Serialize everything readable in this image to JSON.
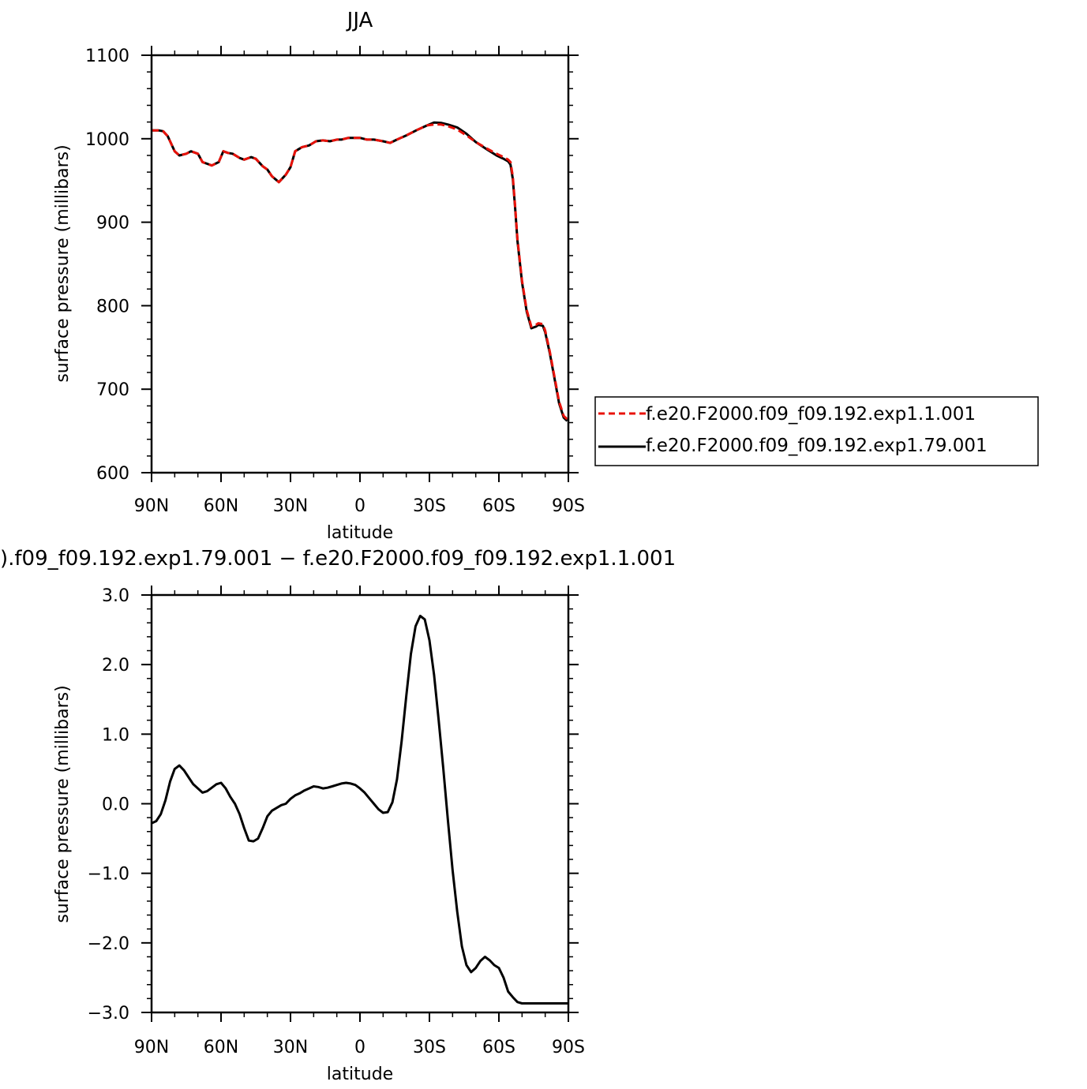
{
  "chart_data": [
    {
      "type": "line",
      "title": "JJA",
      "xlabel": "latitude",
      "ylabel": "surface pressure (millibars)",
      "xlim": [
        90,
        -90
      ],
      "ylim": [
        600,
        1100
      ],
      "x_ticks": [
        90,
        60,
        30,
        0,
        -30,
        -60,
        -90
      ],
      "x_tick_labels": [
        "90N",
        "60N",
        "30N",
        "0",
        "30S",
        "60S",
        "90S"
      ],
      "y_ticks": [
        600,
        700,
        800,
        900,
        1000,
        1100
      ],
      "y_tick_labels": [
        "600",
        "700",
        "800",
        "900",
        "1000",
        "1100"
      ],
      "legend_position": "right",
      "series": [
        {
          "name": "f.e20.F2000.f09_f09.192.exp1.1.001",
          "color": "#e8120a",
          "dash": "dashed",
          "x": [
            90,
            87,
            85,
            83,
            80,
            78,
            75,
            73,
            70,
            68,
            66,
            64,
            61,
            59,
            57,
            55,
            52,
            50,
            47,
            45,
            42,
            40,
            38,
            35,
            32,
            30,
            28,
            25,
            22,
            19,
            16,
            13,
            10,
            8,
            5,
            2,
            0,
            -3,
            -6,
            -10,
            -13,
            -16,
            -20,
            -25,
            -29,
            -32,
            -35,
            -38,
            -42,
            -46,
            -50,
            -55,
            -59,
            -62,
            -64,
            -65,
            -66,
            -67,
            -68,
            -70,
            -72,
            -74,
            -76,
            -77,
            -79,
            -80,
            -82,
            -84,
            -86,
            -88,
            -89.5
          ],
          "y": [
            1010,
            1010,
            1009,
            1003,
            985,
            980,
            982,
            985,
            982,
            972,
            970,
            968,
            972,
            985,
            983,
            982,
            977,
            975,
            978,
            976,
            967,
            963,
            955,
            948,
            957,
            966,
            985,
            990,
            992,
            997,
            998,
            997,
            999,
            999,
            1001,
            1001,
            1001,
            999,
            999,
            997,
            995,
            999,
            1004,
            1011,
            1016,
            1017,
            1017,
            1015,
            1011,
            1004,
            996,
            988,
            982,
            978,
            975,
            972,
            955,
            920,
            880,
            830,
            795,
            775,
            777,
            779,
            778,
            770,
            745,
            715,
            685,
            668,
            664
          ]
        },
        {
          "name": "f.e20.F2000.f09_f09.192.exp1.79.001",
          "color": "#000000",
          "dash": "solid",
          "x": [
            90,
            87,
            85,
            83,
            80,
            78,
            75,
            73,
            70,
            68,
            66,
            64,
            61,
            59,
            57,
            55,
            52,
            50,
            47,
            45,
            42,
            40,
            38,
            35,
            32,
            30,
            28,
            25,
            22,
            19,
            16,
            13,
            10,
            8,
            5,
            2,
            0,
            -3,
            -6,
            -10,
            -13,
            -16,
            -20,
            -25,
            -29,
            -32,
            -35,
            -38,
            -42,
            -46,
            -50,
            -55,
            -59,
            -62,
            -64,
            -65,
            -66,
            -67,
            -68,
            -70,
            -72,
            -74,
            -76,
            -77,
            -79,
            -80,
            -82,
            -84,
            -86,
            -88,
            -89.5
          ],
          "y": [
            1010,
            1010,
            1009,
            1003,
            985,
            980,
            982,
            985,
            982,
            972,
            970,
            968,
            972,
            985,
            983,
            982,
            977,
            975,
            978,
            976,
            967,
            963,
            955,
            948,
            957,
            966,
            985,
            990,
            992,
            997,
            998,
            997,
            999,
            999,
            1001,
            1001,
            1001,
            999,
            999,
            997,
            995,
            999,
            1004,
            1011,
            1016,
            1019.5,
            1019,
            1017,
            1013.5,
            1006,
            996,
            987,
            980,
            976,
            973,
            969,
            952,
            918,
            878,
            828,
            793,
            773,
            775,
            777,
            776,
            768,
            743,
            713,
            683,
            666,
            662
          ]
        }
      ]
    },
    {
      "type": "line",
      "title": ").f09_f09.192.exp1.79.001 − f.e20.F2000.f09_f09.192.exp1.1.001",
      "xlabel": "latitude",
      "ylabel": "surface pressure (millibars)",
      "xlim": [
        90,
        -90
      ],
      "ylim": [
        -3.0,
        3.0
      ],
      "x_ticks": [
        90,
        60,
        30,
        0,
        -30,
        -60,
        -90
      ],
      "x_tick_labels": [
        "90N",
        "60N",
        "30N",
        "0",
        "30S",
        "60S",
        "90S"
      ],
      "y_ticks": [
        3.0,
        2.0,
        1.0,
        0.0,
        -1.0,
        -2.0,
        -3.0
      ],
      "y_tick_labels": [
        "3.0",
        "2.0",
        "1.0",
        "0.0",
        "−1.0",
        "−2.0",
        "−3.0"
      ],
      "series": [
        {
          "color": "#000000",
          "dash": "solid",
          "x": [
            90,
            88,
            86,
            84,
            82,
            80,
            78,
            76,
            74,
            72,
            70,
            68,
            66,
            64,
            62,
            60,
            58,
            56,
            54,
            52,
            50,
            48,
            46,
            44,
            42,
            40,
            38,
            36,
            34,
            32,
            30,
            28,
            26,
            24,
            22,
            20,
            18,
            16,
            14,
            12,
            10,
            8,
            6,
            4,
            2,
            0,
            -2,
            -4,
            -6,
            -8,
            -10,
            -12,
            -14,
            -16,
            -18,
            -20,
            -22,
            -24,
            -26,
            -28,
            -30,
            -32,
            -34,
            -36,
            -38,
            -40,
            -42,
            -44,
            -46,
            -48,
            -50,
            -52,
            -54,
            -56,
            -58,
            -60,
            -62,
            -64,
            -66,
            -68,
            -70,
            -72,
            -74,
            -76,
            -78,
            -80,
            -82,
            -84,
            -86,
            -88,
            -90
          ],
          "y": [
            -0.28,
            -0.25,
            -0.15,
            0.05,
            0.32,
            0.5,
            0.55,
            0.48,
            0.38,
            0.28,
            0.22,
            0.16,
            0.18,
            0.23,
            0.28,
            0.3,
            0.22,
            0.1,
            0.0,
            -0.15,
            -0.35,
            -0.53,
            -0.54,
            -0.5,
            -0.35,
            -0.18,
            -0.1,
            -0.06,
            -0.02,
            0.0,
            0.07,
            0.12,
            0.15,
            0.19,
            0.22,
            0.25,
            0.24,
            0.22,
            0.23,
            0.25,
            0.27,
            0.29,
            0.3,
            0.29,
            0.27,
            0.22,
            0.16,
            0.08,
            0.0,
            -0.08,
            -0.13,
            -0.12,
            0.02,
            0.35,
            0.9,
            1.55,
            2.15,
            2.55,
            2.7,
            2.65,
            2.35,
            1.85,
            1.2,
            0.5,
            -0.25,
            -0.95,
            -1.55,
            -2.05,
            -2.32,
            -2.42,
            -2.36,
            -2.26,
            -2.2,
            -2.25,
            -2.32,
            -2.36,
            -2.5,
            -2.7,
            -2.78,
            -2.85,
            -2.87,
            -2.87,
            -2.87,
            -2.87,
            -2.87,
            -2.87,
            -2.87,
            -2.87,
            -2.87,
            -2.87,
            -2.87
          ]
        }
      ]
    }
  ]
}
